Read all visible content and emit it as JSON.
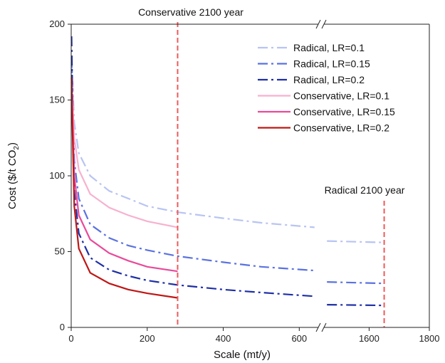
{
  "chart_data": {
    "type": "line",
    "xlabel": "Scale (mt/y)",
    "ylabel_main": "Cost ($/t CO",
    "ylabel_sub": "2",
    "ylabel_end": ")",
    "ylim": [
      0,
      200
    ],
    "y_ticks": [
      "0",
      "50",
      "100",
      "150",
      "200"
    ],
    "x_ticks_left": [
      "0",
      "200",
      "400",
      "600"
    ],
    "x_ticks_right": [
      "1600",
      "1800"
    ],
    "x_axis_break": {
      "left_segment_max": 650,
      "right_segment_min": 1450,
      "right_segment_max": 1800
    },
    "annotations": [
      {
        "text": "Conservative 2100 year",
        "x": 280
      },
      {
        "text": "Radical 2100 year",
        "x": 1650
      }
    ],
    "legend_position": "top-right",
    "series": [
      {
        "name": "Radical, LR=0.1",
        "color": "#b8c4f2",
        "dash": "dashdot",
        "points": [
          [
            1,
            175
          ],
          [
            3,
            165
          ],
          [
            8,
            135
          ],
          [
            20,
            115
          ],
          [
            50,
            100
          ],
          [
            100,
            90
          ],
          [
            150,
            85
          ],
          [
            200,
            80
          ],
          [
            280,
            76
          ],
          [
            400,
            72
          ],
          [
            500,
            69
          ],
          [
            640,
            66
          ],
          [
            1460,
            57
          ],
          [
            1650,
            56
          ]
        ]
      },
      {
        "name": "Radical, LR=0.15",
        "color": "#5a72e0",
        "dash": "dashdot",
        "points": [
          [
            1,
            178
          ],
          [
            3,
            160
          ],
          [
            8,
            110
          ],
          [
            20,
            85
          ],
          [
            50,
            68
          ],
          [
            100,
            59
          ],
          [
            150,
            54
          ],
          [
            200,
            51
          ],
          [
            280,
            47
          ],
          [
            400,
            43
          ],
          [
            500,
            40
          ],
          [
            640,
            37.5
          ],
          [
            1460,
            30
          ],
          [
            1650,
            29
          ]
        ]
      },
      {
        "name": "Radical, LR=0.2",
        "color": "#1e2fa6",
        "dash": "dashdot",
        "points": [
          [
            1,
            192
          ],
          [
            3,
            155
          ],
          [
            8,
            90
          ],
          [
            20,
            62
          ],
          [
            50,
            46
          ],
          [
            100,
            38
          ],
          [
            150,
            34
          ],
          [
            200,
            31
          ],
          [
            280,
            28
          ],
          [
            400,
            25
          ],
          [
            500,
            23
          ],
          [
            640,
            20.5
          ],
          [
            1460,
            15
          ],
          [
            1650,
            14.5
          ]
        ]
      },
      {
        "name": "Conservative, LR=0.1",
        "color": "#f7b1cf",
        "dash": "solid",
        "points": [
          [
            1,
            160
          ],
          [
            3,
            150
          ],
          [
            8,
            125
          ],
          [
            20,
            104
          ],
          [
            50,
            88
          ],
          [
            100,
            79
          ],
          [
            150,
            74
          ],
          [
            200,
            70
          ],
          [
            280,
            66
          ]
        ]
      },
      {
        "name": "Conservative, LR=0.15",
        "color": "#e94a9a",
        "dash": "solid",
        "points": [
          [
            1,
            162
          ],
          [
            3,
            145
          ],
          [
            8,
            100
          ],
          [
            20,
            74
          ],
          [
            50,
            58
          ],
          [
            100,
            49
          ],
          [
            150,
            44
          ],
          [
            200,
            40
          ],
          [
            280,
            37
          ]
        ]
      },
      {
        "name": "Conservative, LR=0.2",
        "color": "#c01616",
        "dash": "solid",
        "points": [
          [
            1,
            165
          ],
          [
            3,
            135
          ],
          [
            8,
            80
          ],
          [
            20,
            52
          ],
          [
            50,
            36
          ],
          [
            100,
            29
          ],
          [
            150,
            25
          ],
          [
            200,
            22.5
          ],
          [
            280,
            19.5
          ]
        ]
      }
    ],
    "reference_line_color": "#ee5a5a"
  }
}
